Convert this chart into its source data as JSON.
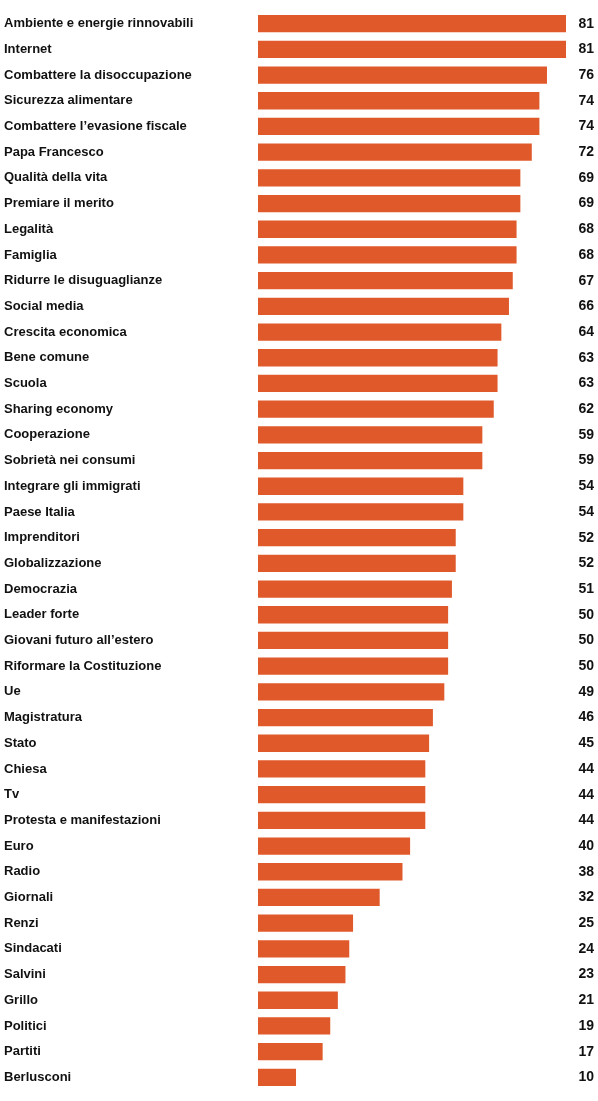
{
  "chart_data": {
    "type": "bar",
    "orientation": "horizontal",
    "data_labels": true,
    "color": "#e0592a",
    "tick_labels": "y",
    "categories": [
      "Ambiente e energie rinnovabili",
      "Internet",
      "Combattere la disoccupazione",
      "Sicurezza alimentare",
      "Combattere l’evasione fiscale",
      "Papa Francesco",
      "Qualità della vita",
      "Premiare il merito",
      "Legalità",
      "Famiglia",
      "Ridurre le disuguaglianze",
      "Social media",
      "Crescita economica",
      "Bene comune",
      "Scuola",
      "Sharing economy",
      "Cooperazione",
      "Sobrietà nei consumi",
      "Integrare gli immigrati",
      "Paese Italia",
      "Imprenditori",
      "Globalizzazione",
      "Democrazia",
      "Leader forte",
      "Giovani futuro all’estero",
      "Riformare la Costituzione",
      "Ue",
      "Magistratura",
      "Stato",
      "Chiesa",
      "Tv",
      "Protesta e manifestazioni",
      "Euro",
      "Radio",
      "Giornali",
      "Renzi",
      "Sindacati",
      "Salvini",
      "Grillo",
      "Politici",
      "Partiti",
      "Berlusconi"
    ],
    "values": [
      81,
      81,
      76,
      74,
      74,
      72,
      69,
      69,
      68,
      68,
      67,
      66,
      64,
      63,
      63,
      62,
      59,
      59,
      54,
      54,
      52,
      52,
      51,
      50,
      50,
      50,
      49,
      46,
      45,
      44,
      44,
      44,
      40,
      38,
      32,
      25,
      24,
      23,
      21,
      19,
      17,
      10
    ]
  }
}
